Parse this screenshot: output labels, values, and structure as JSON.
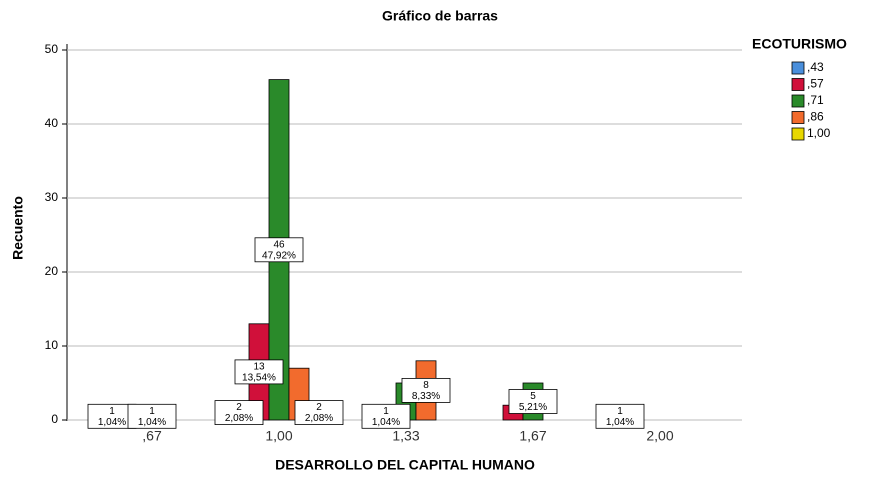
{
  "chart_data": {
    "type": "bar",
    "title": "Gráfico de barras",
    "x_label": "DESARROLLO DEL CAPITAL HUMANO",
    "y_label": "Recuento",
    "legend_title": "ECOTURISMO",
    "legend": "right",
    "categories": [
      ",67",
      "1,00",
      "1,33",
      "1,67",
      "2,00"
    ],
    "series": [
      {
        "name": ",43",
        "color": "#4a8fdc",
        "values": [
          1,
          2,
          null,
          null,
          1
        ],
        "value_labels": [
          "1,04%",
          "2,08%",
          null,
          null,
          "1,04%"
        ]
      },
      {
        "name": ",57",
        "color": "#d0103a",
        "values": [
          null,
          13,
          1,
          2,
          null
        ],
        "value_labels": [
          null,
          "13,54%",
          "1,04%",
          null,
          null
        ]
      },
      {
        "name": ",71",
        "color": "#2a8a2a",
        "values": [
          1,
          46,
          5,
          5,
          null
        ],
        "value_labels": [
          "1,04%",
          "47,92%",
          null,
          "5,21%",
          null
        ]
      },
      {
        "name": ",86",
        "color": "#f26b2d",
        "values": [
          null,
          7,
          8,
          null,
          null
        ],
        "value_labels": [
          null,
          null,
          "8,33%",
          null,
          null
        ]
      },
      {
        "name": "1,00",
        "color": "#e8d800",
        "values": [
          null,
          2,
          null,
          null,
          null
        ],
        "value_labels": [
          null,
          "2,08%",
          null,
          null,
          null
        ]
      }
    ],
    "ylim": [
      0,
      50
    ],
    "yticks": [
      0,
      10,
      20,
      30,
      40,
      50
    ],
    "grid": true
  }
}
